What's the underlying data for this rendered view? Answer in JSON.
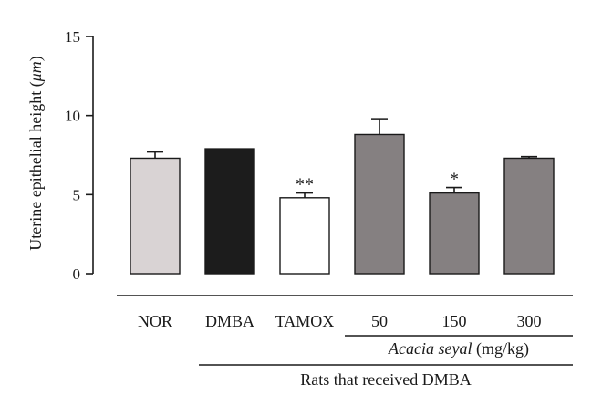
{
  "chart_data": {
    "type": "bar",
    "ylabel_main": "Uterine epithelial height (",
    "ylabel_unit": "μm",
    "ylabel_end": ")",
    "ylim": [
      0,
      15
    ],
    "yticks": [
      "0",
      "5",
      "10",
      "15"
    ],
    "categories": [
      "NOR",
      "DMBA",
      "TAMOX",
      "50",
      "150",
      "300"
    ],
    "values": [
      7.3,
      7.9,
      4.8,
      8.8,
      5.1,
      7.3
    ],
    "errors": [
      0.4,
      0.0,
      0.3,
      1.0,
      0.35,
      0.1
    ],
    "significance": [
      "",
      "",
      "**",
      "",
      "*",
      ""
    ],
    "colors": [
      "#d9d3d4",
      "#1c1c1c",
      "#ffffff",
      "#858081",
      "#858081",
      "#858081"
    ],
    "group1_species": "Acacia seyal",
    "group1_unit": " (mg/kg)",
    "group2_label": "Rats that received DMBA"
  }
}
